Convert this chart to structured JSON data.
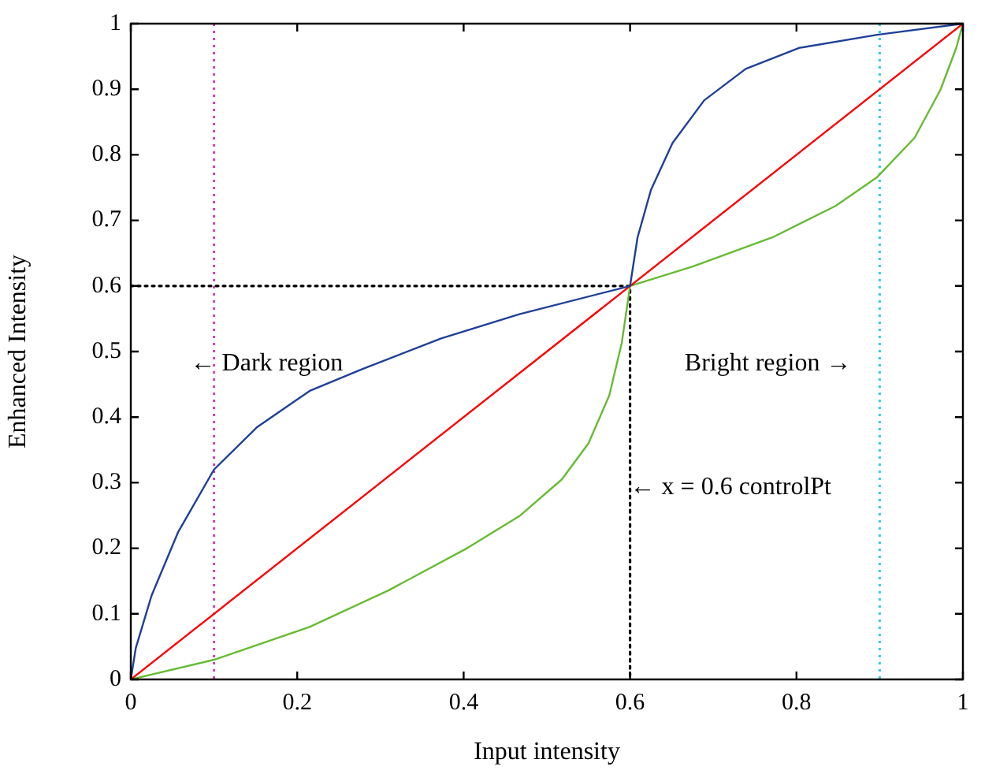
{
  "chart_data": {
    "type": "line",
    "xlabel": "Input intensity",
    "ylabel": "Enhanced Intensity",
    "xlim": [
      0,
      1
    ],
    "xticks": [
      0,
      0.2,
      0.4,
      0.6,
      0.8,
      1
    ],
    "ylim": [
      0,
      1
    ],
    "yticks": [
      0,
      0.1,
      0.2,
      0.3,
      0.4,
      0.5,
      0.6,
      0.7,
      0.8,
      0.9,
      1
    ],
    "grid": false,
    "legend": false,
    "marker": "none",
    "series": [
      {
        "color": "#1f3f99",
        "x": [
          0,
          0.006,
          0.025,
          0.057,
          0.1,
          0.152,
          0.215,
          0.278,
          0.373,
          0.467,
          0.6,
          0.609,
          0.625,
          0.651,
          0.689,
          0.739,
          0.803,
          0.897,
          1
        ],
        "values": [
          0,
          0.048,
          0.128,
          0.225,
          0.32,
          0.385,
          0.44,
          0.473,
          0.52,
          0.557,
          0.6,
          0.674,
          0.746,
          0.818,
          0.883,
          0.931,
          0.963,
          0.983,
          1
        ]
      },
      {
        "color": "#ff0000",
        "x": [
          0,
          1
        ],
        "values": [
          0,
          1
        ]
      },
      {
        "color": "#66bb33",
        "x": [
          0,
          0.1,
          0.215,
          0.31,
          0.404,
          0.467,
          0.518,
          0.55,
          0.575,
          0.59,
          0.6,
          0.676,
          0.771,
          0.847,
          0.897,
          0.942,
          0.973,
          0.992,
          1
        ],
        "values": [
          0,
          0.03,
          0.08,
          0.136,
          0.2,
          0.249,
          0.305,
          0.36,
          0.433,
          0.513,
          0.6,
          0.63,
          0.674,
          0.722,
          0.766,
          0.826,
          0.899,
          0.963,
          1
        ]
      },
      {
        "color": "#000000",
        "line_style": "dotted",
        "x": [
          0,
          0.6,
          0.6
        ],
        "values": [
          0.6,
          0.6,
          0
        ]
      }
    ],
    "ref_lines": [
      {
        "axis": "x",
        "value": 0.1,
        "color": "#cc44aa",
        "line_style": "dotted"
      },
      {
        "axis": "x",
        "value": 0.9,
        "color": "#33ccdd",
        "line_style": "dotted"
      }
    ],
    "annotations": [
      "← Dark region",
      "Bright region →",
      {
        "text": "← x = 0.6 controlPt",
        "x": 0.6,
        "y": 0.293
      }
    ]
  }
}
